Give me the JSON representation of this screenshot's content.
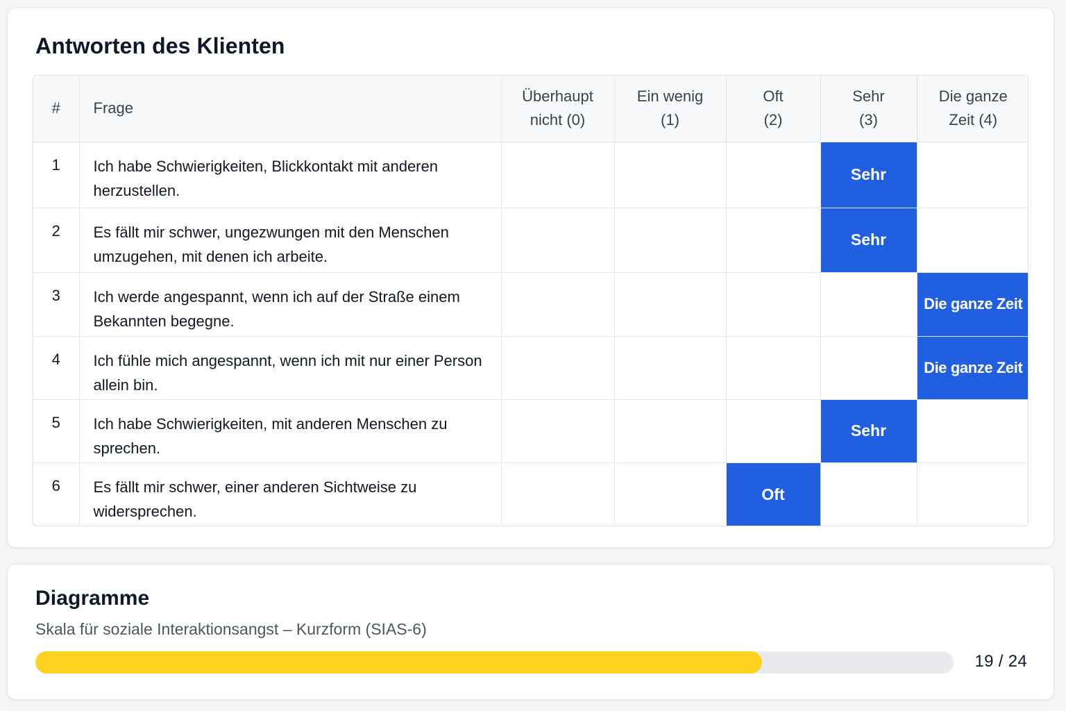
{
  "answers_card": {
    "title": "Antworten des Klienten",
    "columns": {
      "num": "#",
      "question": "Frage",
      "options": [
        {
          "l1": "Überhaupt",
          "l2": "nicht (0)"
        },
        {
          "l1": "Ein wenig",
          "l2": "(1)"
        },
        {
          "l1": "Oft",
          "l2": "(2)"
        },
        {
          "l1": "Sehr",
          "l2": "(3)"
        },
        {
          "l1": "Die ganze",
          "l2": "Zeit (4)"
        }
      ]
    },
    "rows": [
      {
        "num": "1",
        "question": "Ich habe Schwierigkeiten, Blickkontakt mit anderen herzustellen.",
        "selected_index": 3,
        "selected_label": "Sehr"
      },
      {
        "num": "2",
        "question": "Es fällt mir schwer, ungezwungen mit den Menschen umzugehen, mit denen ich arbeite.",
        "selected_index": 3,
        "selected_label": "Sehr"
      },
      {
        "num": "3",
        "question": "Ich werde angespannt, wenn ich auf der Straße einem Bekannten begegne.",
        "selected_index": 4,
        "selected_label": "Die ganze Zeit"
      },
      {
        "num": "4",
        "question": "Ich fühle mich angespannt, wenn ich mit nur einer Person allein bin.",
        "selected_index": 4,
        "selected_label": "Die ganze Zeit"
      },
      {
        "num": "5",
        "question": "Ich habe Schwierigkeiten, mit anderen Menschen zu sprechen.",
        "selected_index": 3,
        "selected_label": "Sehr"
      },
      {
        "num": "6",
        "question": "Es fällt mir schwer, einer anderen Sichtweise zu widersprechen.",
        "selected_index": 2,
        "selected_label": "Oft"
      }
    ]
  },
  "charts_card": {
    "title": "Diagramme",
    "subtitle": "Skala für soziale Interaktionsangst – Kurzform (SIAS-6)",
    "score": 19,
    "max_score": 24,
    "score_label": "19 / 24"
  },
  "colors": {
    "selected": "#1f5fe0",
    "progress_fill": "#fdd31f",
    "progress_track": "#e9eaed"
  }
}
